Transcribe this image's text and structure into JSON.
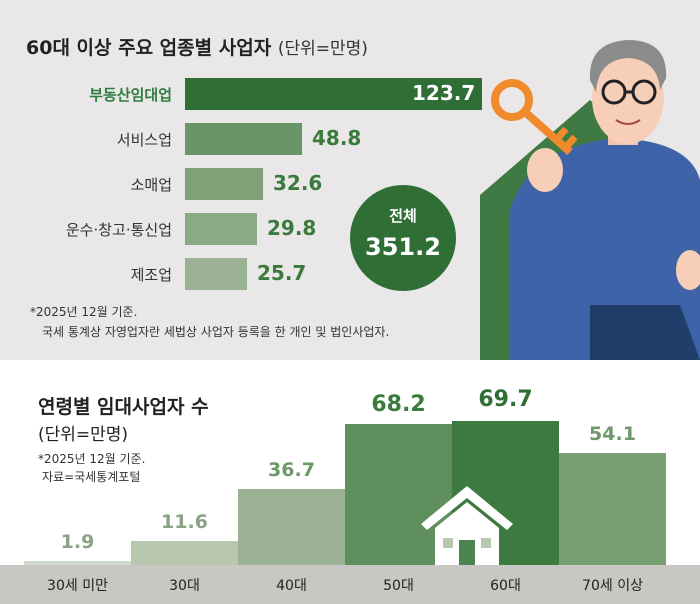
{
  "top": {
    "title": "60대 이상 주요 업종별 사업자",
    "unit": "(단위=만명)",
    "total_label": "전체",
    "total_value": "351.2",
    "note_line1": "*2025년 12월 기준.",
    "note_line2": "국세 통계상 자영업자란 세법상 사업자 등록을 한 개인 및 법인사업자."
  },
  "bottom": {
    "title": "연령별 임대사업자 수",
    "unit": "(단위=만명)",
    "note_line1": "*2025년 12월 기준.",
    "note_line2": "자료=국세통계포털"
  },
  "colors": {
    "dark_green": "#2f6f36",
    "mid_green": "#6a9566",
    "light_green": "#9bb394",
    "value_green": "#3a7a3c"
  },
  "chart_data": [
    {
      "type": "bar",
      "orientation": "horizontal",
      "title": "60대 이상 주요 업종별 사업자",
      "unit": "(단위=만명)",
      "categories": [
        "부동산임대업",
        "서비스업",
        "소매업",
        "운수·창고·통신업",
        "제조업"
      ],
      "values": [
        123.7,
        48.8,
        32.6,
        29.8,
        25.7
      ],
      "value_labels": [
        "123.7",
        "48.8",
        "32.6",
        "29.8",
        "25.7"
      ],
      "highlight": "부동산임대업",
      "total": 351.2
    },
    {
      "type": "bar",
      "orientation": "vertical",
      "title": "연령별 임대사업자 수",
      "unit": "(단위=만명)",
      "categories": [
        "30세 미만",
        "30대",
        "40대",
        "50대",
        "60대",
        "70세 이상"
      ],
      "values": [
        1.9,
        11.6,
        36.7,
        68.2,
        69.7,
        54.1
      ],
      "value_labels": [
        "1.9",
        "11.6",
        "36.7",
        "68.2",
        "69.7",
        "54.1"
      ],
      "highlight": "60대"
    }
  ]
}
